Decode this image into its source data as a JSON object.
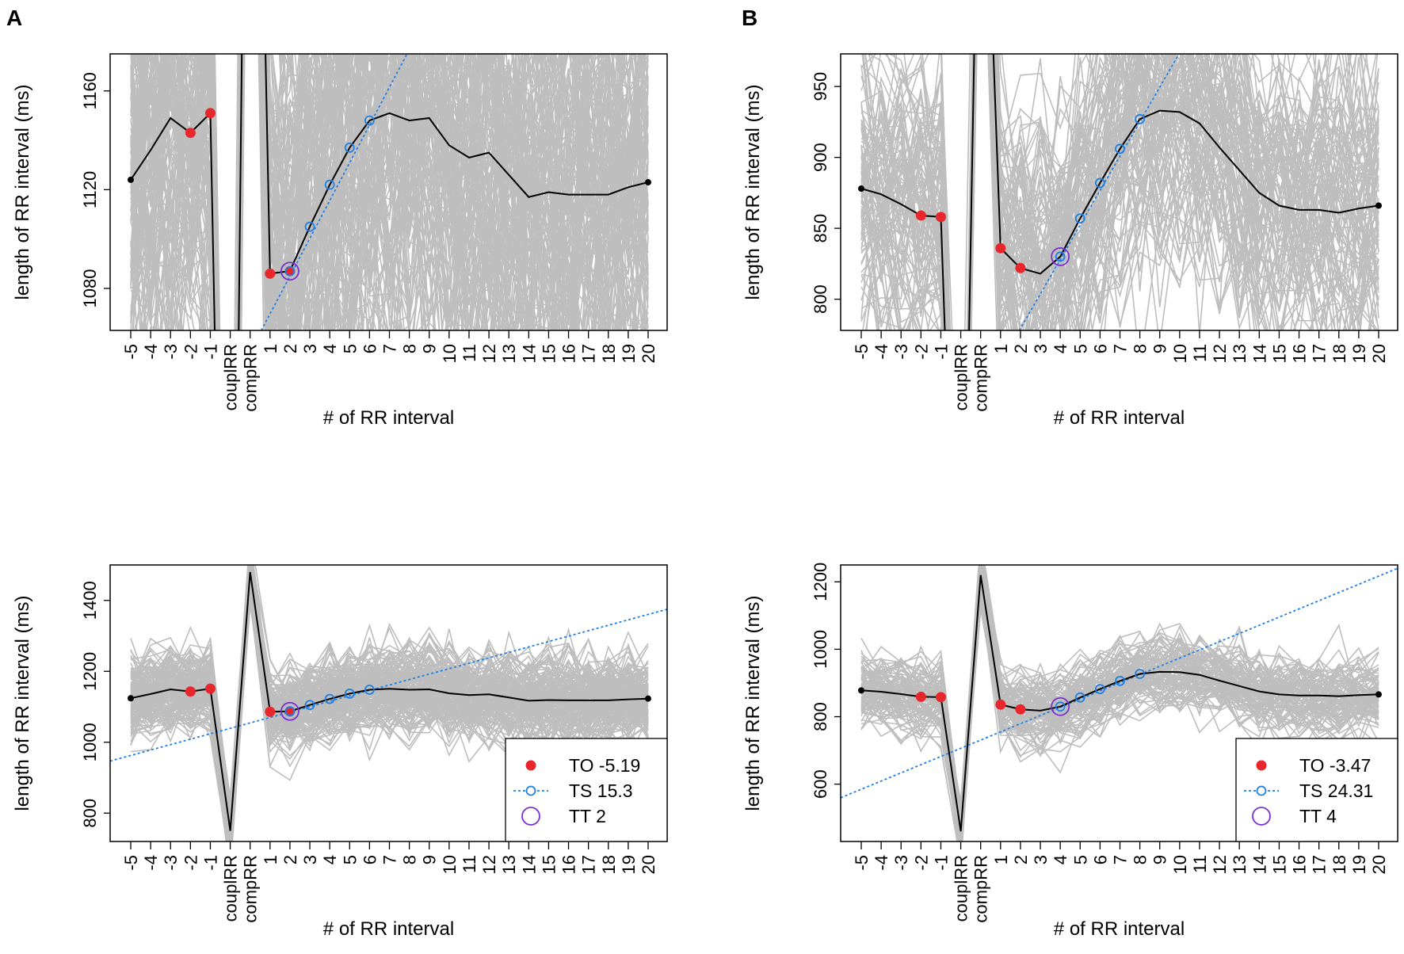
{
  "panel_labels": [
    "A",
    "B"
  ],
  "chart_data": [
    {
      "id": "A-top",
      "panel": "A",
      "type": "line",
      "xlabel": "# of RR interval",
      "ylabel": "length of RR interval (ms)",
      "categories": [
        "-5",
        "-4",
        "-3",
        "-2",
        "-1",
        "couplRR",
        "compRR",
        "1",
        "2",
        "3",
        "4",
        "5",
        "6",
        "7",
        "8",
        "9",
        "10",
        "11",
        "12",
        "13",
        "14",
        "15",
        "16",
        "17",
        "18",
        "19",
        "20"
      ],
      "mean": [
        1124,
        1136,
        1149,
        1143,
        1151,
        750,
        1480,
        1086,
        1087,
        1105,
        1122,
        1137,
        1148,
        1151,
        1148,
        1149,
        1138,
        1133,
        1135,
        1126,
        1117,
        1119,
        1118,
        1118,
        1118,
        1121,
        1123
      ],
      "ylim": [
        1063,
        1175
      ],
      "yticks": [
        1080,
        1120,
        1160
      ],
      "background_series": {
        "count": 160,
        "spread_ms": 60,
        "color": "#bebebe"
      },
      "TO_points": [
        "-2",
        "-1",
        "1",
        "2"
      ],
      "TS_points": [
        "2",
        "3",
        "4",
        "5",
        "6"
      ],
      "TT_point": "2",
      "TS_line": {
        "anchor": "2",
        "anchor_value": 1085,
        "slope": 15.3
      },
      "legend": null
    },
    {
      "id": "B-top",
      "panel": "B",
      "type": "line",
      "xlabel": "# of RR interval",
      "ylabel": "length of RR interval (ms)",
      "categories": [
        "-5",
        "-4",
        "-3",
        "-2",
        "-1",
        "couplRR",
        "compRR",
        "1",
        "2",
        "3",
        "4",
        "5",
        "6",
        "7",
        "8",
        "9",
        "10",
        "11",
        "12",
        "13",
        "14",
        "15",
        "16",
        "17",
        "18",
        "19",
        "20"
      ],
      "mean": [
        878,
        874,
        867,
        859,
        858,
        460,
        1220,
        836,
        822,
        818,
        830,
        857,
        882,
        906,
        927,
        933,
        932,
        924,
        907,
        891,
        875,
        866,
        863,
        863,
        861,
        864,
        866
      ],
      "ylim": [
        778,
        973
      ],
      "yticks": [
        800,
        850,
        900,
        950
      ],
      "background_series": {
        "count": 100,
        "spread_ms": 55,
        "color": "#bebebe"
      },
      "TO_points": [
        "-2",
        "-1",
        "1",
        "2"
      ],
      "TS_points": [
        "4",
        "5",
        "6",
        "7",
        "8"
      ],
      "TT_point": "4",
      "TS_line": {
        "anchor": "4",
        "anchor_value": 828,
        "slope": 24.31
      },
      "legend": null
    },
    {
      "id": "A-bottom",
      "panel": "A",
      "type": "line",
      "xlabel": "# of RR interval",
      "ylabel": "length of RR interval (ms)",
      "categories": [
        "-5",
        "-4",
        "-3",
        "-2",
        "-1",
        "couplRR",
        "compRR",
        "1",
        "2",
        "3",
        "4",
        "5",
        "6",
        "7",
        "8",
        "9",
        "10",
        "11",
        "12",
        "13",
        "14",
        "15",
        "16",
        "17",
        "18",
        "19",
        "20"
      ],
      "mean": [
        1124,
        1136,
        1149,
        1143,
        1151,
        750,
        1480,
        1086,
        1087,
        1105,
        1122,
        1137,
        1148,
        1151,
        1148,
        1149,
        1138,
        1133,
        1135,
        1126,
        1117,
        1119,
        1118,
        1118,
        1118,
        1121,
        1123
      ],
      "ylim": [
        720,
        1500
      ],
      "yticks": [
        800,
        1000,
        1200,
        1400
      ],
      "background_series": {
        "count": 160,
        "spread_ms": 60,
        "color": "#bebebe"
      },
      "TO_points": [
        "-2",
        "-1",
        "1",
        "2"
      ],
      "TS_points": [
        "2",
        "3",
        "4",
        "5",
        "6"
      ],
      "TT_point": "2",
      "TS_line": {
        "anchor": "2",
        "anchor_value": 1085,
        "slope": 15.3
      },
      "legend": {
        "TO": "TO -5.19",
        "TS": "TS 15.3",
        "TT": "TT 2"
      }
    },
    {
      "id": "B-bottom",
      "panel": "B",
      "type": "line",
      "xlabel": "# of RR interval",
      "ylabel": "length of RR interval (ms)",
      "categories": [
        "-5",
        "-4",
        "-3",
        "-2",
        "-1",
        "couplRR",
        "compRR",
        "1",
        "2",
        "3",
        "4",
        "5",
        "6",
        "7",
        "8",
        "9",
        "10",
        "11",
        "12",
        "13",
        "14",
        "15",
        "16",
        "17",
        "18",
        "19",
        "20"
      ],
      "mean": [
        878,
        874,
        867,
        859,
        858,
        460,
        1220,
        836,
        822,
        818,
        830,
        857,
        882,
        906,
        927,
        933,
        932,
        924,
        907,
        891,
        875,
        866,
        863,
        863,
        861,
        864,
        866
      ],
      "ylim": [
        430,
        1250
      ],
      "yticks": [
        600,
        800,
        1000,
        1200
      ],
      "background_series": {
        "count": 100,
        "spread_ms": 55,
        "color": "#bebebe"
      },
      "TO_points": [
        "-2",
        "-1",
        "1",
        "2"
      ],
      "TS_points": [
        "4",
        "5",
        "6",
        "7",
        "8"
      ],
      "TT_point": "4",
      "TS_line": {
        "anchor": "4",
        "anchor_value": 828,
        "slope": 24.31
      },
      "legend": {
        "TO": "TO -3.47",
        "TS": "TS 24.31",
        "TT": "TT 4"
      }
    }
  ],
  "colors": {
    "mean": "#000000",
    "TO": "#e8262b",
    "TS": "#1e7fe6",
    "TT": "#7b2fd0",
    "grey": "#bebebe"
  }
}
